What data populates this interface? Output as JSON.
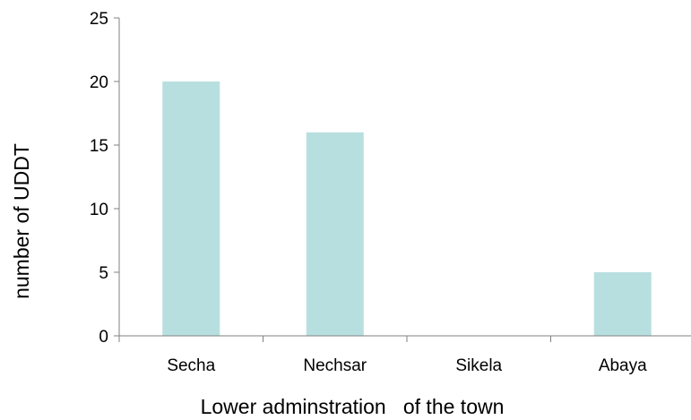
{
  "chart_data": {
    "type": "bar",
    "categories": [
      "Secha",
      "Nechsar",
      "Sikela",
      "Abaya"
    ],
    "values": [
      20,
      16,
      0,
      5
    ],
    "xlabel": "Lower adminstration   of the town",
    "ylabel": "number of UDDT",
    "ylim": [
      0,
      25
    ],
    "yticks": [
      "0",
      "5",
      "10",
      "15",
      "20",
      "25"
    ],
    "grid": false,
    "legend": "none",
    "bar_color": "#b8dfe0",
    "axis_color": "#808080"
  }
}
